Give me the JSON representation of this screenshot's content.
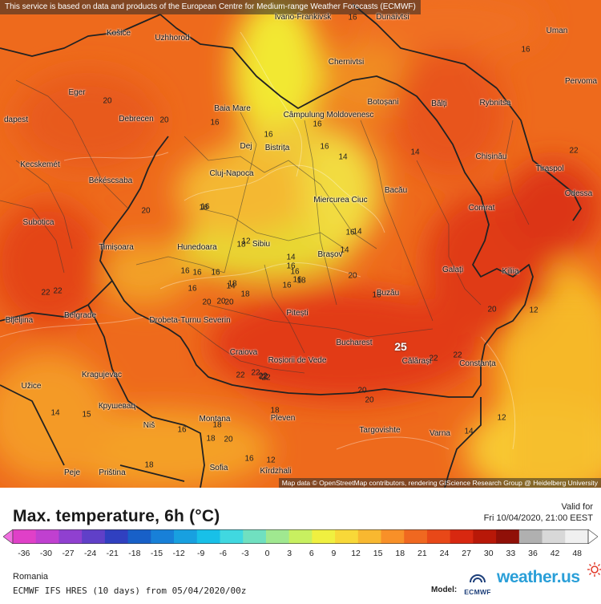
{
  "attribution_top": "This service is based on data and products of the European Centre for Medium-range Weather Forecasts (ECMWF)",
  "attribution_bottom": "Map data © OpenStreetMap contributors, rendering GIScience Research Group @ Heidelberg University",
  "title": "Max. temperature, 6h (°C)",
  "valid_label": "Valid for",
  "valid_date": "Fri 10/04/2020, 21:00 EEST",
  "scale": {
    "ticks": [
      "-36",
      "-30",
      "-27",
      "-24",
      "-21",
      "-18",
      "-15",
      "-12",
      "-9",
      "-6",
      "-3",
      "0",
      "3",
      "6",
      "9",
      "12",
      "15",
      "18",
      "21",
      "24",
      "27",
      "30",
      "33",
      "36",
      "42",
      "48"
    ],
    "colors": [
      "#e040c8",
      "#c040d0",
      "#9040d0",
      "#6040c8",
      "#3040c0",
      "#1860c8",
      "#1880d8",
      "#18a0e0",
      "#18c0e8",
      "#40d8e0",
      "#70e0c0",
      "#a0e890",
      "#c8f060",
      "#f0f040",
      "#f8d838",
      "#f8b830",
      "#f89028",
      "#f06820",
      "#e84818",
      "#d82810",
      "#b81808",
      "#901008",
      "#b0b0b0",
      "#d8d8d8",
      "#f0f0f0"
    ]
  },
  "region": "Romania",
  "model_run": "ECMWF IFS HRES (10 days) from 05/04/2020/00z",
  "model_label": "Model:",
  "logos": {
    "ecmwf": "ECMWF",
    "weather_us": "weather.us"
  },
  "icons": [
    "ecmwf-logo-icon",
    "weather-us-sun-icon"
  ],
  "map": {
    "cities": [
      {
        "name": "Ivano-Frankivsk"
      },
      {
        "name": "Dunaivtsi"
      },
      {
        "name": "Košice"
      },
      {
        "name": "Uzhhorod"
      },
      {
        "name": "Uman"
      },
      {
        "name": "Chernivtsi"
      },
      {
        "name": "Pervoma"
      },
      {
        "name": "Eger"
      },
      {
        "name": "Baia Mare"
      },
      {
        "name": "Câmpulung Moldovenesc"
      },
      {
        "name": "Botoșani"
      },
      {
        "name": "Bălți"
      },
      {
        "name": "Rybnitsa"
      },
      {
        "name": "dapest"
      },
      {
        "name": "Debrecen"
      },
      {
        "name": "Dej"
      },
      {
        "name": "Bistrița"
      },
      {
        "name": "Chișinău"
      },
      {
        "name": "Kecskemét"
      },
      {
        "name": "Békéscsaba"
      },
      {
        "name": "Cluj-Napoca"
      },
      {
        "name": "Tiraspol"
      },
      {
        "name": "Miercurea Ciuc"
      },
      {
        "name": "Bacău"
      },
      {
        "name": "Odessa"
      },
      {
        "name": "Subotica"
      },
      {
        "name": "Comrat"
      },
      {
        "name": "Timișoara"
      },
      {
        "name": "Hunedoara"
      },
      {
        "name": "Sibiu"
      },
      {
        "name": "Brașov"
      },
      {
        "name": "Galați"
      },
      {
        "name": "Kiliia"
      },
      {
        "name": "Belgrade"
      },
      {
        "name": "Bijeljina"
      },
      {
        "name": "Drobeta-Turnu Severin"
      },
      {
        "name": "Pitești"
      },
      {
        "name": "Buzău"
      },
      {
        "name": "Craiova"
      },
      {
        "name": "Roșiorii de Vede"
      },
      {
        "name": "Bucharest"
      },
      {
        "name": "Călărași"
      },
      {
        "name": "Constanța"
      },
      {
        "name": "Kragujevac"
      },
      {
        "name": "Užice"
      },
      {
        "name": "Крушевац"
      },
      {
        "name": "Niš"
      },
      {
        "name": "Montana"
      },
      {
        "name": "Pleven"
      },
      {
        "name": "Targovishte"
      },
      {
        "name": "Varna"
      },
      {
        "name": "Priština"
      },
      {
        "name": "Sofia"
      },
      {
        "name": "Kîrdzhali"
      },
      {
        "name": "Peje"
      }
    ],
    "isolines": [
      "16",
      "16",
      "20",
      "16",
      "16",
      "16",
      "16",
      "14",
      "14",
      "20",
      "16",
      "22",
      "22",
      "20",
      "16",
      "18",
      "16",
      "14",
      "16",
      "18",
      "12",
      "16",
      "16",
      "18",
      "16",
      "22",
      "12",
      "20",
      "20",
      "20",
      "22",
      "22",
      "22",
      "22",
      "20",
      "18",
      "14",
      "12",
      "12",
      "16",
      "14",
      "16",
      "16",
      "18",
      "18",
      "14",
      "20",
      "16",
      "14",
      "15",
      "14",
      "16",
      "16",
      "18",
      "22",
      "20",
      "20",
      "18",
      "16",
      "20",
      "22",
      "22"
    ],
    "max_label": "25"
  }
}
